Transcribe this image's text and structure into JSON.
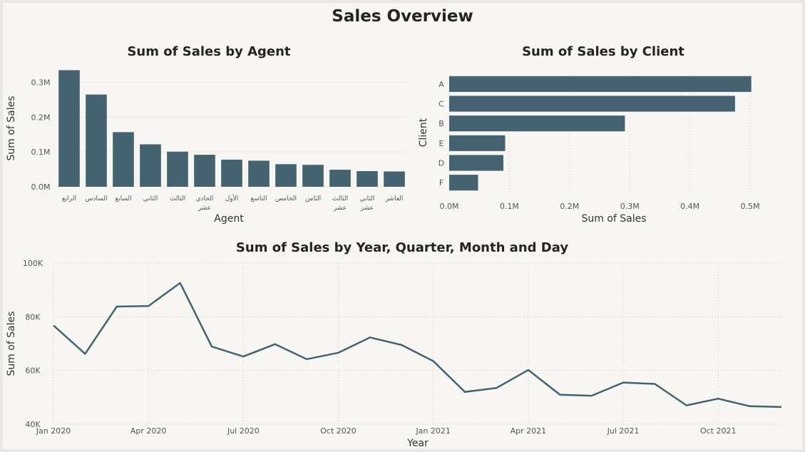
{
  "dashboard": {
    "title": "Sales Overview",
    "colors": {
      "series": "#44626f",
      "background": "#f8f6f3",
      "grid": "#cfcac1",
      "text": "#252423"
    }
  },
  "chart_data": [
    {
      "type": "bar",
      "orientation": "vertical",
      "title": "Sum of Sales by Agent",
      "xlabel": "Agent",
      "ylabel": "Sum of Sales",
      "ylim": [
        0,
        0.34
      ],
      "yticks": [
        "0.0M",
        "0.1M",
        "0.2M",
        "0.3M"
      ],
      "ytick_values": [
        0,
        0.1,
        0.2,
        0.3
      ],
      "categories": [
        "الرابع",
        "السادس",
        "السابع",
        "الثاني",
        "الثالث",
        "الحادي عشر",
        "الأول",
        "التاسع",
        "الخامس",
        "الثامن",
        "الثالث عشر",
        "الثاني عشر",
        "العاشر"
      ],
      "category_lines": [
        [
          "الرابع"
        ],
        [
          "السادس"
        ],
        [
          "السابع"
        ],
        [
          "الثاني"
        ],
        [
          "الثالث"
        ],
        [
          "الحادي",
          "عشر"
        ],
        [
          "الأول"
        ],
        [
          "التاسع"
        ],
        [
          "الخامس"
        ],
        [
          "الثامن"
        ],
        [
          "الثالث",
          "عشر"
        ],
        [
          "الثاني",
          "عشر"
        ],
        [
          "العاشر"
        ]
      ],
      "values": [
        0.335,
        0.265,
        0.157,
        0.122,
        0.101,
        0.092,
        0.078,
        0.075,
        0.065,
        0.063,
        0.049,
        0.045,
        0.044
      ],
      "grid": true
    },
    {
      "type": "bar",
      "orientation": "horizontal",
      "title": "Sum of Sales by Client",
      "xlabel": "Sum of Sales",
      "ylabel": "Client",
      "xlim": [
        0,
        0.5
      ],
      "xticks": [
        "0.0M",
        "0.1M",
        "0.2M",
        "0.3M",
        "0.4M",
        "0.5M"
      ],
      "xtick_values": [
        0,
        0.1,
        0.2,
        0.3,
        0.4,
        0.5
      ],
      "categories": [
        "A",
        "C",
        "B",
        "E",
        "D",
        "F"
      ],
      "values": [
        0.502,
        0.475,
        0.292,
        0.093,
        0.09,
        0.048
      ],
      "grid": true
    },
    {
      "type": "line",
      "title": "Sum of Sales by Year, Quarter, Month and Day",
      "xlabel": "Year",
      "ylabel": "Sum of Sales",
      "ylim": [
        40000,
        100000
      ],
      "yticks": [
        "40K",
        "60K",
        "80K",
        "100K"
      ],
      "ytick_values": [
        40000,
        60000,
        80000,
        100000
      ],
      "xtick_labels": [
        "Jan 2020",
        "Apr 2020",
        "Jul 2020",
        "Oct 2020",
        "Jan 2021",
        "Apr 2021",
        "Jul 2021",
        "Oct 2021"
      ],
      "xtick_months": [
        0,
        3,
        6,
        9,
        12,
        15,
        18,
        21
      ],
      "x": [
        "2020-01",
        "2020-02",
        "2020-03",
        "2020-04",
        "2020-05",
        "2020-06",
        "2020-07",
        "2020-08",
        "2020-09",
        "2020-10",
        "2020-11",
        "2020-12",
        "2021-01",
        "2021-02",
        "2021-03",
        "2021-04",
        "2021-05",
        "2021-06",
        "2021-07",
        "2021-08",
        "2021-09",
        "2021-10",
        "2021-11",
        "2021-12"
      ],
      "values": [
        76800,
        66200,
        83800,
        84000,
        92600,
        68900,
        65200,
        69800,
        64200,
        66600,
        72300,
        69500,
        63500,
        52000,
        53500,
        60200,
        51000,
        50600,
        55500,
        55000,
        47000,
        49500,
        46700,
        46400
      ],
      "grid": true
    }
  ]
}
